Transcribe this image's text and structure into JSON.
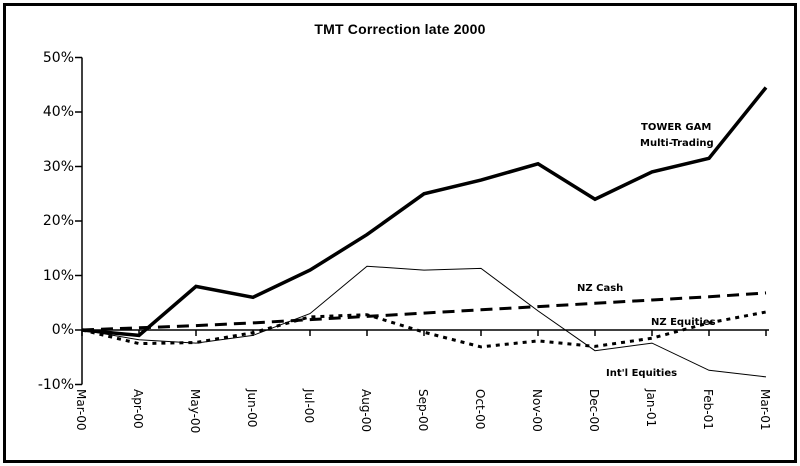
{
  "chart_data": {
    "type": "line",
    "title": "TMT Correction late 2000",
    "xlabel": "",
    "ylabel": "",
    "ylim": [
      -10,
      50
    ],
    "grid": false,
    "legend_position": "inline-annotations",
    "line_color": "#000000",
    "x_labels": [
      "Mar-00",
      "Apr-00",
      "May-00",
      "Jun-00",
      "Jul-00",
      "Aug-00",
      "Sep-00",
      "Oct-00",
      "Nov-00",
      "Dec-00",
      "Jan-01",
      "Feb-01",
      "Mar-01"
    ],
    "y_tick_values": [
      50,
      40,
      30,
      20,
      10,
      0,
      -10
    ],
    "y_tick_labels": [
      "50%",
      "40%",
      "30%",
      "20%",
      "10%",
      "0%",
      "-10%"
    ],
    "series": [
      {
        "id": "tower-gam",
        "name": "TOWER GAM Multi-Trading",
        "style": "thick-solid",
        "values": [
          0,
          -1,
          8,
          6,
          11,
          17.5,
          25,
          27.5,
          30.5,
          24,
          29,
          31.5,
          44.5
        ]
      },
      {
        "id": "intl-equities",
        "name": "Int'l Equities",
        "style": "thin-solid",
        "values": [
          0,
          -1.8,
          -2.4,
          -1,
          3,
          11.7,
          11,
          11.3,
          3.5,
          -3.8,
          -2.4,
          -7.4,
          -8.6
        ]
      },
      {
        "id": "nz-cash",
        "name": "NZ Cash",
        "style": "long-dash",
        "values": [
          0,
          0.4,
          0.8,
          1.3,
          1.9,
          2.5,
          3.1,
          3.7,
          4.3,
          4.9,
          5.5,
          6.1,
          6.8
        ]
      },
      {
        "id": "nz-equities",
        "name": "NZ Equities",
        "style": "short-dash",
        "values": [
          0,
          -2.5,
          -2.3,
          -0.5,
          2.4,
          2.8,
          -0.4,
          -3.1,
          -2.0,
          -3.0,
          -1.5,
          1.3,
          3.3
        ]
      }
    ],
    "labels": {
      "tower_line1": "TOWER GAM",
      "tower_line2": "Multi-Trading",
      "nz_cash": "NZ Cash",
      "nz_equities": "NZ Equities",
      "intl_equities": "Int'l Equities"
    }
  }
}
